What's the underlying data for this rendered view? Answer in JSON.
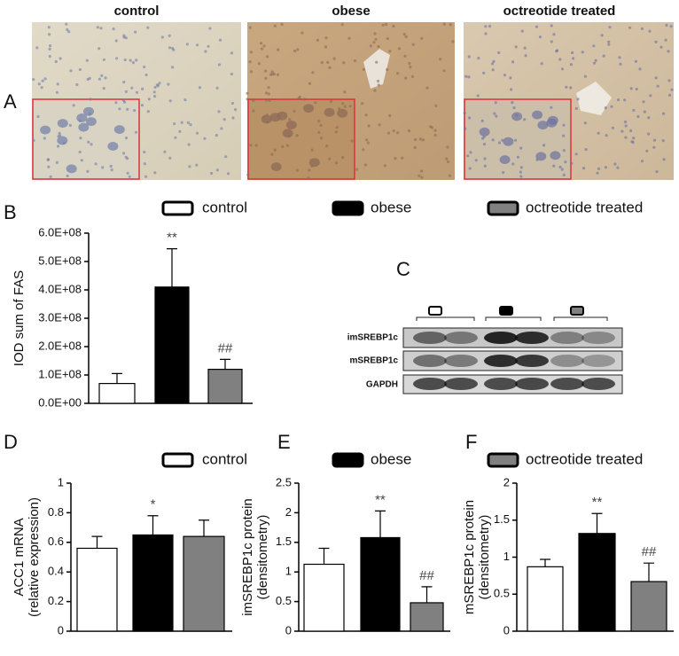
{
  "panel_a": {
    "label": "A",
    "titles": [
      "control",
      "obese",
      "octreotide treated"
    ]
  },
  "panel_c": {
    "label": "C",
    "rows": [
      "imSREBP1c",
      "mSREBP1c",
      "GAPDH"
    ]
  },
  "chart_data": [
    {
      "type": "bar",
      "panel": "B",
      "ylabel": [
        "IOD sum of FAS"
      ],
      "categories": [
        null
      ],
      "ylim": [
        0,
        600000000
      ],
      "yticks": [
        {
          "value": 0,
          "label": "0.0E+00"
        },
        {
          "value": 100000000,
          "label": "1.0E+08"
        },
        {
          "value": 200000000,
          "label": "2.0E+08"
        },
        {
          "value": 300000000,
          "label": "3.0E+08"
        },
        {
          "value": 400000000,
          "label": "4.0E+08"
        },
        {
          "value": 500000000,
          "label": "5.0E+08"
        },
        {
          "value": 600000000,
          "label": "6.0E+08"
        }
      ],
      "series": [
        {
          "name": "control",
          "color": "#ffffff",
          "values": [
            70000000
          ],
          "errors": [
            35000000
          ]
        },
        {
          "name": "obese",
          "color": "#000000",
          "values": [
            410000000
          ],
          "errors": [
            135000000
          ],
          "annotation": "**"
        },
        {
          "name": "octreotide treated",
          "color": "#808080",
          "values": [
            120000000
          ],
          "errors": [
            35000000
          ],
          "annotation": "##"
        }
      ]
    },
    {
      "type": "bar",
      "panel": "D",
      "ylabel": [
        "ACC1 mRNA",
        "(relative expression)"
      ],
      "categories": [
        null
      ],
      "ylim": [
        0,
        1
      ],
      "yticks": [
        0,
        0.2,
        0.4,
        0.6,
        0.8,
        1
      ],
      "series": [
        {
          "name": "control",
          "color": "#ffffff",
          "values": [
            0.56
          ],
          "errors": [
            0.08
          ]
        },
        {
          "name": "obese",
          "color": "#000000",
          "values": [
            0.65
          ],
          "errors": [
            0.13
          ],
          "annotation": "*"
        },
        {
          "name": "octreotide treated",
          "color": "#808080",
          "values": [
            0.64
          ],
          "errors": [
            0.11
          ]
        }
      ]
    },
    {
      "type": "bar",
      "panel": "E",
      "ylabel": [
        "imSREBP1c protein",
        "(densitometry)"
      ],
      "categories": [
        null
      ],
      "ylim": [
        0,
        2.5
      ],
      "yticks": [
        0,
        0.5,
        1,
        1.5,
        2,
        2.5
      ],
      "series": [
        {
          "name": "control",
          "color": "#ffffff",
          "values": [
            1.13
          ],
          "errors": [
            0.27
          ]
        },
        {
          "name": "obese",
          "color": "#000000",
          "values": [
            1.58
          ],
          "errors": [
            0.45
          ],
          "annotation": "**"
        },
        {
          "name": "octreotide treated",
          "color": "#808080",
          "values": [
            0.48
          ],
          "errors": [
            0.27
          ],
          "annotation": "##"
        }
      ]
    },
    {
      "type": "bar",
      "panel": "F",
      "ylabel": [
        "mSREBP1c protein",
        "(densitometry)"
      ],
      "categories": [
        null
      ],
      "ylim": [
        0,
        2
      ],
      "yticks": [
        0,
        0.5,
        1,
        1.5,
        2
      ],
      "series": [
        {
          "name": "control",
          "color": "#ffffff",
          "values": [
            0.87
          ],
          "errors": [
            0.1
          ]
        },
        {
          "name": "obese",
          "color": "#000000",
          "values": [
            1.32
          ],
          "errors": [
            0.27
          ],
          "annotation": "**"
        },
        {
          "name": "octreotide treated",
          "color": "#808080",
          "values": [
            0.67
          ],
          "errors": [
            0.25
          ],
          "annotation": "##"
        }
      ]
    }
  ]
}
